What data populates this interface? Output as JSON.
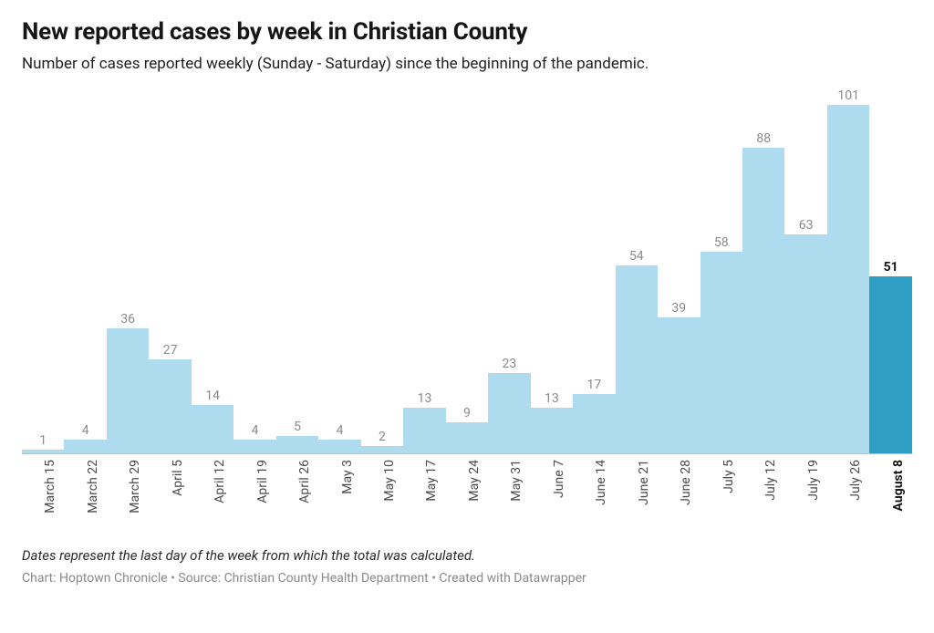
{
  "title": "New reported cases by week in Christian County",
  "subtitle": "Number of cases reported weekly (Sunday - Saturday) since the beginning of the pandemic.",
  "footnote": "Dates represent the last day of the week from which the total was calculated.",
  "credit": "Chart: Hoptown Chronicle • Source: Christian County Health Department • Created with Datawrapper",
  "chart": {
    "type": "bar",
    "ymax": 105,
    "value_label_fontsize": 14,
    "xlabel_fontsize": 14,
    "value_label_color_default": "#8a8a8a",
    "value_label_color_highlight": "#161616",
    "xlabel_color_default": "#4a4a4a",
    "xlabel_color_highlight": "#161616",
    "xlabel_weight_default": "400",
    "xlabel_weight_highlight": "700",
    "bar_color_default": "#aedbed",
    "bar_color_highlight": "#2e9ec4",
    "baseline_color": "#c0c0c0",
    "background_color": "#ffffff",
    "bars": [
      {
        "label": "March 15",
        "value": 1,
        "highlight": false
      },
      {
        "label": "March 22",
        "value": 4,
        "highlight": false
      },
      {
        "label": "March 29",
        "value": 36,
        "highlight": false
      },
      {
        "label": "April 5",
        "value": 27,
        "highlight": false
      },
      {
        "label": "April 12",
        "value": 14,
        "highlight": false
      },
      {
        "label": "April 19",
        "value": 4,
        "highlight": false
      },
      {
        "label": "April 26",
        "value": 5,
        "highlight": false
      },
      {
        "label": "May 3",
        "value": 4,
        "highlight": false
      },
      {
        "label": "May 10",
        "value": 2,
        "highlight": false
      },
      {
        "label": "May 17",
        "value": 13,
        "highlight": false
      },
      {
        "label": "May 24",
        "value": 9,
        "highlight": false
      },
      {
        "label": "May 31",
        "value": 23,
        "highlight": false
      },
      {
        "label": "June 7",
        "value": 13,
        "highlight": false
      },
      {
        "label": "June 14",
        "value": 17,
        "highlight": false
      },
      {
        "label": "June 21",
        "value": 54,
        "highlight": false
      },
      {
        "label": "June 28",
        "value": 39,
        "highlight": false
      },
      {
        "label": "July 5",
        "value": 58,
        "highlight": false
      },
      {
        "label": "July 12",
        "value": 88,
        "highlight": false
      },
      {
        "label": "July 19",
        "value": 63,
        "highlight": false
      },
      {
        "label": "July 26",
        "value": 101,
        "highlight": false
      },
      {
        "label": "August 8",
        "value": 51,
        "highlight": true
      }
    ]
  }
}
